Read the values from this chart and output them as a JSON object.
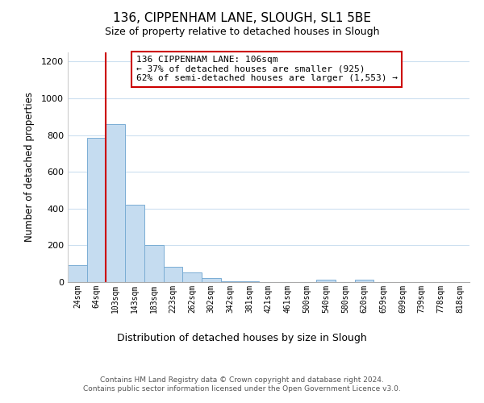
{
  "title": "136, CIPPENHAM LANE, SLOUGH, SL1 5BE",
  "subtitle": "Size of property relative to detached houses in Slough",
  "xlabel": "Distribution of detached houses by size in Slough",
  "ylabel": "Number of detached properties",
  "bar_labels": [
    "24sqm",
    "64sqm",
    "103sqm",
    "143sqm",
    "183sqm",
    "223sqm",
    "262sqm",
    "302sqm",
    "342sqm",
    "381sqm",
    "421sqm",
    "461sqm",
    "500sqm",
    "540sqm",
    "580sqm",
    "620sqm",
    "659sqm",
    "699sqm",
    "739sqm",
    "778sqm",
    "818sqm"
  ],
  "bar_values": [
    93,
    785,
    860,
    420,
    200,
    85,
    52,
    22,
    5,
    3,
    0,
    0,
    0,
    12,
    0,
    12,
    0,
    0,
    0,
    0,
    0
  ],
  "bar_color": "#c5dcf0",
  "bar_edge_color": "#7aadd4",
  "vline_color": "#cc0000",
  "annotation_text": "136 CIPPENHAM LANE: 106sqm\n← 37% of detached houses are smaller (925)\n62% of semi-detached houses are larger (1,553) →",
  "annotation_box_color": "white",
  "annotation_box_edge": "#cc0000",
  "ylim": [
    0,
    1250
  ],
  "yticks": [
    0,
    200,
    400,
    600,
    800,
    1000,
    1200
  ],
  "footer_text": "Contains HM Land Registry data © Crown copyright and database right 2024.\nContains public sector information licensed under the Open Government Licence v3.0.",
  "grid_color": "#ccdff0"
}
